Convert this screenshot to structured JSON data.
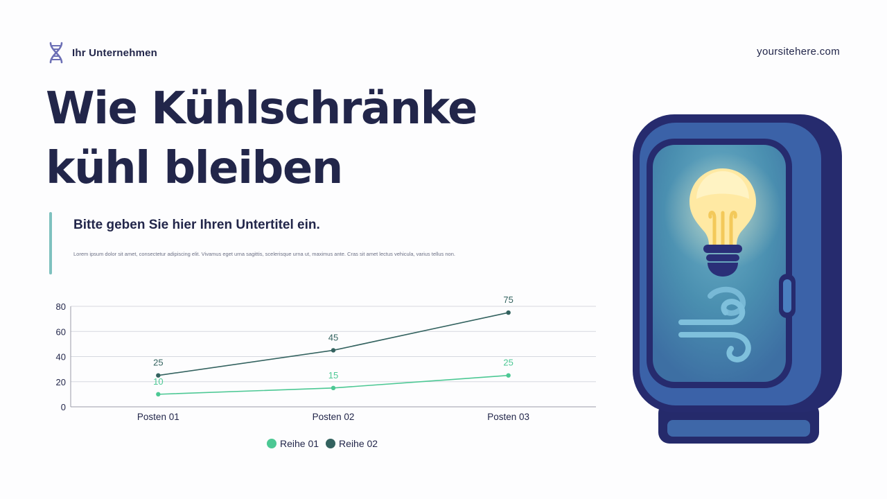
{
  "header": {
    "company": "Ihr Unternehmen",
    "website": "yoursitehere.com",
    "logo_icon": "dna-icon"
  },
  "title": {
    "line1": "Wie Kühlschränke",
    "line2": "kühl bleiben"
  },
  "subtitle": "Bitte geben Sie hier Ihren Untertitel ein.",
  "body_text": "Lorem ipsum dolor sit amet, consectetur adipiscing elit. Vivamus eget urna sagittis, scelerisque urna ut, maximus ante. Cras sit amet lectus vehicula, varius tellus non.",
  "illustration": "refrigerator-icon",
  "colors": {
    "series1": "#4cc894",
    "series2": "#33625f",
    "accent_bar": "#7fc1bf",
    "text": "#22264a"
  },
  "chart_data": {
    "type": "line",
    "categories": [
      "Posten 01",
      "Posten 02",
      "Posten 03"
    ],
    "series": [
      {
        "name": "Reihe 01",
        "values": [
          10,
          15,
          25
        ],
        "color": "#4cc894"
      },
      {
        "name": "Reihe 02",
        "values": [
          25,
          45,
          75
        ],
        "color": "#33625f"
      }
    ],
    "yticks": [
      "0",
      "20",
      "40",
      "60",
      "80"
    ],
    "ylim": [
      0,
      80
    ],
    "grid": true,
    "legend": "bottom",
    "title": "",
    "xlabel": "",
    "ylabel": ""
  }
}
